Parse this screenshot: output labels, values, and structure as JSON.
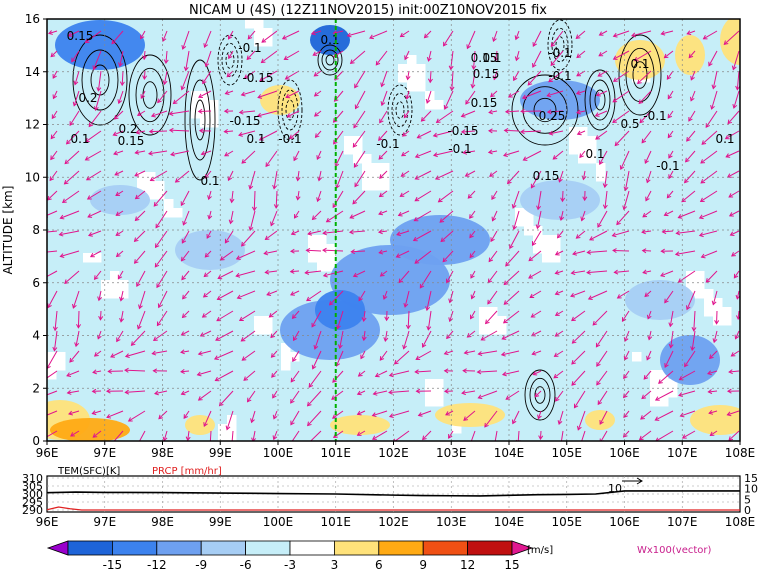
{
  "chart_data": [
    {
      "type": "heatmap",
      "title": "NICAM U (4S) (12Z11NOV2015) init:00Z10NOV2015 fix",
      "ylabel": "ALTITUDE [km]",
      "xlim": [
        96,
        108
      ],
      "ylim": [
        0,
        16
      ],
      "x_ticks": [
        "96E",
        "97E",
        "98E",
        "99E",
        "100E",
        "101E",
        "102E",
        "103E",
        "104E",
        "105E",
        "106E",
        "107E",
        "108E"
      ],
      "y_ticks": [
        "0",
        "2",
        "4",
        "6",
        "8",
        "10",
        "12",
        "14",
        "16"
      ],
      "grid": true,
      "marker_line": {
        "x": 101.0,
        "style": "dashed",
        "color": "#00b000"
      },
      "contour_labels": [
        "0.15",
        "0.2",
        "0.1",
        "0.2",
        "0.15",
        "-0.1",
        "-0.15",
        "-0.15",
        "0.1",
        "-0.1",
        "0.1",
        "0.1",
        "-0.1",
        "-0.15",
        "-0.1",
        "0.15",
        "0.15",
        "-0.1",
        "0.15",
        "0.1",
        "0.25",
        "0.15",
        "0.1",
        "-0.1",
        "0.1",
        "0.5",
        "-0.1",
        "0.1",
        "-0.1"
      ],
      "vector_label": "Wx100(vector)",
      "color_bar": {
        "levels": [
          "-15",
          "-12",
          "-9",
          "-6",
          "-3",
          "3",
          "6",
          "9",
          "12",
          "15"
        ],
        "unit": "[m/s]",
        "colors": [
          "#9900cc",
          "#1e64d8",
          "#3c82ee",
          "#6ea0f0",
          "#a6cdf4",
          "#c6eef8",
          "#ffffff",
          "#ffe27a",
          "#ffaa14",
          "#f05014",
          "#c01010",
          "#e01890"
        ]
      }
    },
    {
      "type": "line",
      "legend": [
        "TEM(SFC)[K]",
        "PRCP [mm/hr]"
      ],
      "left_axis_ticks": [
        "310",
        "305",
        "300",
        "295",
        "290"
      ],
      "right_axis_ticks": [
        "15",
        "10",
        "5",
        "0"
      ],
      "x_ticks": [
        "96E",
        "97E",
        "98E",
        "99E",
        "100E",
        "101E",
        "102E",
        "103E",
        "104E",
        "105E",
        "106E",
        "107E",
        "108E"
      ],
      "series": [
        {
          "name": "TEM(SFC)[K]",
          "x": [
            96,
            96.5,
            97,
            98,
            99,
            100,
            101,
            102,
            102.5,
            103,
            103.5,
            104,
            104.5,
            105,
            105.5,
            106,
            107,
            108
          ],
          "y": [
            300.8,
            301.2,
            301.0,
            300.9,
            300.6,
            300.3,
            300.0,
            299.3,
            299.0,
            298.9,
            298.8,
            299.2,
            299.6,
            299.7,
            300.0,
            301.9,
            301.9,
            301.9
          ]
        },
        {
          "name": "PRCP [mm/hr]",
          "x": [
            96,
            96.2,
            96.4,
            96.6,
            96.8,
            97,
            100,
            108
          ],
          "y": [
            0.1,
            1.4,
            0.6,
            0,
            0,
            0,
            0,
            0
          ]
        }
      ],
      "annotation": "10"
    }
  ]
}
